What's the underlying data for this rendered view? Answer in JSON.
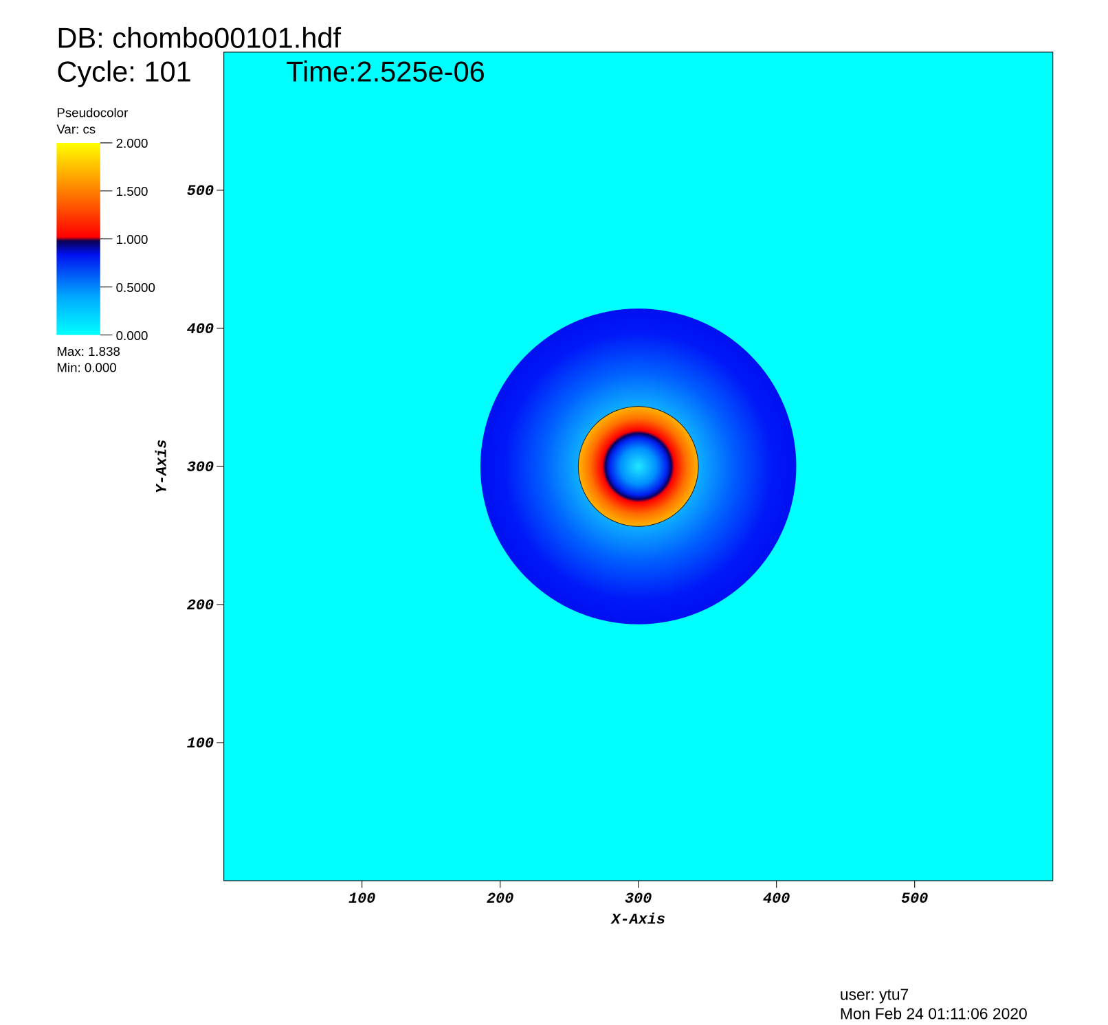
{
  "chart_data": {
    "type": "pseudocolor",
    "db_label": "DB: chombo00101.hdf",
    "cycle_label": "Cycle: 101",
    "time_label": "Time:2.525e-06",
    "legend_title": "Pseudocolor",
    "variable_label": "Var: cs",
    "max_label": "Max:  1.838",
    "min_label": "Min:  0.000",
    "colorbar_lim": [
      0,
      2
    ],
    "colorbar_ticks": [
      {
        "value": 2,
        "label": "2.000"
      },
      {
        "value": 1.5,
        "label": "1.500"
      },
      {
        "value": 1,
        "label": "1.000"
      },
      {
        "value": 0.5,
        "label": "0.5000"
      },
      {
        "value": 0,
        "label": "0.000"
      }
    ],
    "x_label": "X-Axis",
    "y_label": "Y-Axis",
    "xlim": [
      0,
      600
    ],
    "ylim": [
      0,
      600
    ],
    "xticks": [
      100,
      200,
      300,
      400,
      500
    ],
    "yticks": [
      100,
      200,
      300,
      400,
      500
    ],
    "user_label": "user: ytu7",
    "date_label": "Mon Feb 24 01:11:06 2020"
  }
}
